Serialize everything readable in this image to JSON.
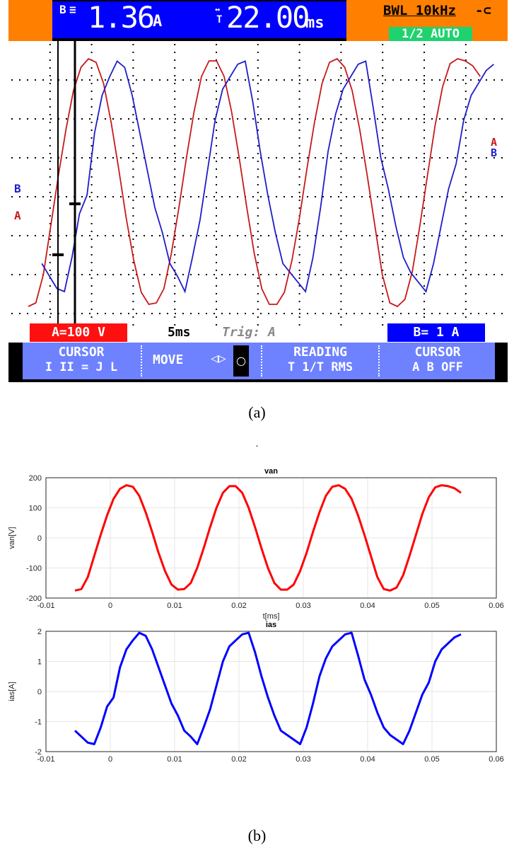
{
  "scope": {
    "reading_label": "B",
    "reading_value": "1.36",
    "reading_unit": "A",
    "time_label": "T",
    "time_value": "22.00",
    "time_unit": "ms",
    "bwl": "BWL 10kHz",
    "auto": "1/2 AUTO",
    "marker_a": "A",
    "marker_b": "B",
    "scale_a": "A=100 V",
    "timebase": "5ms",
    "trig": "Trig: A",
    "scale_b": "B= 1 A",
    "softkeys": [
      {
        "top": "CURSOR",
        "bottom": "I II = J L"
      },
      {
        "top": "MOVE",
        "bottom": ""
      },
      {
        "top": "READING",
        "bottom": "T 1/T RMS"
      },
      {
        "top": "CURSOR",
        "bottom": "A B OFF"
      }
    ],
    "colors": {
      "orange": "#ff8000",
      "blue": "#0000ff",
      "green": "#1ed26e",
      "panel": "#dce6ff",
      "red": "#ff1010",
      "trace_a": "#c81919",
      "trace_b": "#1e1ec8",
      "softkey": "#6e82ff"
    }
  },
  "caption_a": "(a)",
  "caption_b": "(b)",
  "dot": ".",
  "chart_data": [
    {
      "type": "line",
      "title": "van",
      "xlabel": "t[ms]",
      "ylabel": "van[V]",
      "xlim": [
        -0.01,
        0.06
      ],
      "ylim": [
        -200,
        200
      ],
      "xticks": [
        "-0.01",
        "0",
        "0.01",
        "0.02",
        "0.03",
        "0.04",
        "0.05",
        "0.06"
      ],
      "yticks": [
        "-200",
        "-100",
        "0",
        "100",
        "200"
      ],
      "grid": true,
      "color": "#ff0000",
      "x": [
        -0.0055,
        -0.0045,
        -0.0035,
        -0.0025,
        -0.0015,
        -0.0005,
        0.0005,
        0.0015,
        0.0025,
        0.0035,
        0.0045,
        0.0055,
        0.0065,
        0.0075,
        0.0085,
        0.0095,
        0.0105,
        0.0115,
        0.0125,
        0.0135,
        0.0145,
        0.0155,
        0.0165,
        0.0175,
        0.0185,
        0.0195,
        0.0205,
        0.0215,
        0.0225,
        0.0235,
        0.0245,
        0.0255,
        0.0265,
        0.0275,
        0.0285,
        0.0295,
        0.0305,
        0.0315,
        0.0325,
        0.0335,
        0.0345,
        0.0355,
        0.0365,
        0.0375,
        0.0385,
        0.0395,
        0.0405,
        0.0415,
        0.0425,
        0.0435,
        0.0445,
        0.0455,
        0.0465,
        0.0475,
        0.0485,
        0.0495,
        0.0505,
        0.0515,
        0.0525,
        0.0535,
        0.0545
      ],
      "y": [
        -175,
        -170,
        -130,
        -60,
        10,
        75,
        130,
        163,
        175,
        170,
        140,
        85,
        20,
        -50,
        -110,
        -155,
        -172,
        -170,
        -150,
        -100,
        -35,
        35,
        100,
        150,
        172,
        172,
        150,
        100,
        35,
        -35,
        -100,
        -150,
        -172,
        -172,
        -155,
        -110,
        -50,
        20,
        85,
        140,
        170,
        175,
        163,
        130,
        75,
        10,
        -60,
        -130,
        -170,
        -175,
        -165,
        -125,
        -60,
        10,
        80,
        135,
        168,
        175,
        172,
        165,
        150
      ]
    },
    {
      "type": "line",
      "title": "ias",
      "xlabel": "t[ms]",
      "ylabel": "ias[A]",
      "xlim": [
        -0.01,
        0.06
      ],
      "ylim": [
        -2,
        2
      ],
      "xticks": [
        "-0.01",
        "0",
        "0.01",
        "0.02",
        "0.03",
        "0.04",
        "0.05",
        "0.06"
      ],
      "yticks": [
        "-2",
        "-1",
        "0",
        "1",
        "2"
      ],
      "grid": true,
      "color": "#0000ff",
      "x": [
        -0.0055,
        -0.0045,
        -0.0035,
        -0.0025,
        -0.0015,
        -0.0005,
        0.0005,
        0.0015,
        0.0025,
        0.0035,
        0.0045,
        0.0055,
        0.0065,
        0.0075,
        0.0085,
        0.0095,
        0.0105,
        0.0115,
        0.0125,
        0.0135,
        0.0145,
        0.0155,
        0.0165,
        0.0175,
        0.0185,
        0.0195,
        0.0205,
        0.0215,
        0.0225,
        0.0235,
        0.0245,
        0.0255,
        0.0265,
        0.0275,
        0.0285,
        0.0295,
        0.0305,
        0.0315,
        0.0325,
        0.0335,
        0.0345,
        0.0355,
        0.0365,
        0.0375,
        0.0385,
        0.0395,
        0.0405,
        0.0415,
        0.0425,
        0.0435,
        0.0445,
        0.0455,
        0.0465,
        0.0475,
        0.0485,
        0.0495,
        0.0505,
        0.0515,
        0.0525,
        0.0535,
        0.0545
      ],
      "y": [
        -1.3,
        -1.5,
        -1.7,
        -1.75,
        -1.2,
        -0.5,
        -0.2,
        0.8,
        1.4,
        1.7,
        1.95,
        1.85,
        1.4,
        0.8,
        0.2,
        -0.4,
        -0.8,
        -1.3,
        -1.5,
        -1.75,
        -1.2,
        -0.6,
        0.2,
        1.0,
        1.5,
        1.7,
        1.9,
        1.95,
        1.3,
        0.5,
        -0.2,
        -0.8,
        -1.3,
        -1.45,
        -1.6,
        -1.75,
        -1.2,
        -0.4,
        0.5,
        1.1,
        1.5,
        1.7,
        1.9,
        1.95,
        1.2,
        0.4,
        -0.1,
        -0.7,
        -1.2,
        -1.45,
        -1.6,
        -1.75,
        -1.3,
        -0.7,
        -0.1,
        0.3,
        1.0,
        1.4,
        1.6,
        1.8,
        1.9
      ]
    }
  ]
}
